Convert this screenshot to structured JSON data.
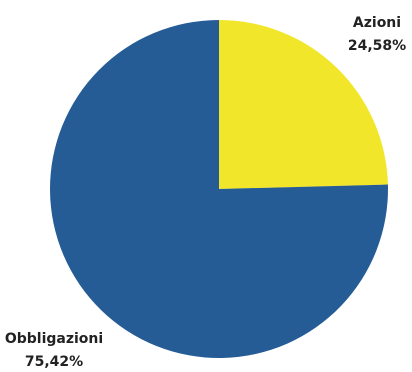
{
  "chart_data": {
    "type": "pie",
    "title": "",
    "legend": "none",
    "slices": [
      {
        "label": "Azioni",
        "value": 24.58,
        "value_label": "24,58%",
        "color": "#F2E62A"
      },
      {
        "label": "Obbligazioni",
        "value": 75.42,
        "value_label": "75,42%",
        "color": "#265C96"
      }
    ]
  }
}
